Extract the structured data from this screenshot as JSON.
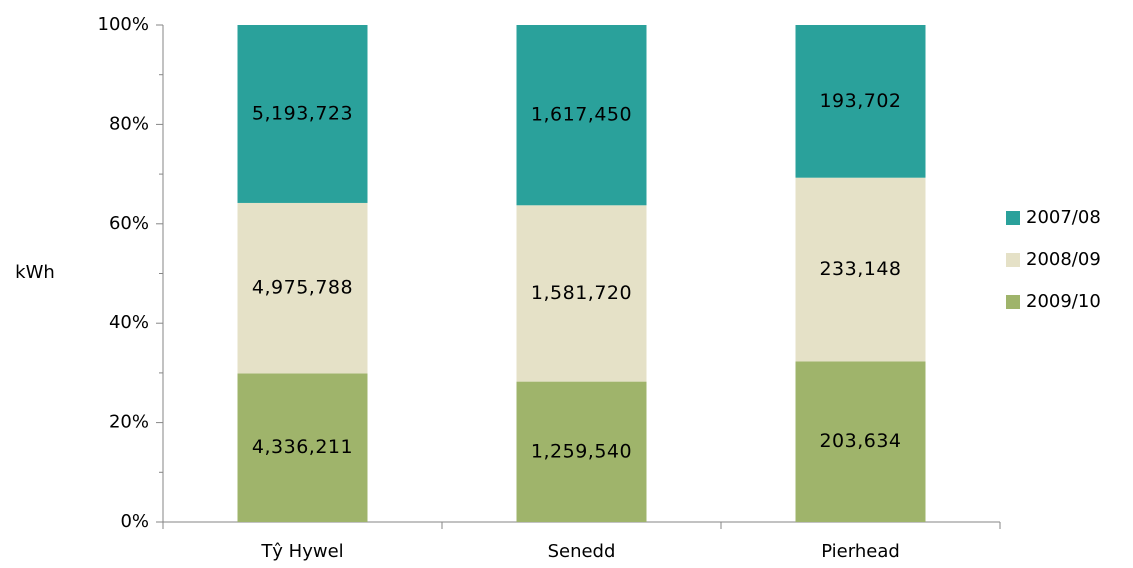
{
  "chart_data": {
    "type": "bar",
    "stacking": "percent",
    "ylabel": "kWh",
    "categories": [
      "Tŷ Hywel",
      "Senedd",
      "Pierhead"
    ],
    "series": [
      {
        "name": "2007/08",
        "color": "#2aa19b",
        "values": [
          5193723,
          1617450,
          193702
        ],
        "value_labels": [
          "5,193,723",
          "1,617,450",
          "193,702"
        ]
      },
      {
        "name": "2008/09",
        "color": "#e5e1c7",
        "values": [
          4975788,
          1581720,
          233148
        ],
        "value_labels": [
          "4,975,788",
          "1,581,720",
          "233,148"
        ]
      },
      {
        "name": "2009/10",
        "color": "#9fb46b",
        "values": [
          4336211,
          1259540,
          203634
        ],
        "value_labels": [
          "4,336,211",
          "1,259,540",
          "203,634"
        ]
      }
    ],
    "ylim": [
      0,
      100
    ],
    "yticks": [
      {
        "value": 0,
        "label": "0%"
      },
      {
        "value": 20,
        "label": "20%"
      },
      {
        "value": 40,
        "label": "40%"
      },
      {
        "value": 60,
        "label": "60%"
      },
      {
        "value": 80,
        "label": "80%"
      },
      {
        "value": 100,
        "label": "100%"
      }
    ],
    "minor_yticks": [
      10,
      30,
      50,
      70,
      90
    ],
    "legend": "right"
  }
}
